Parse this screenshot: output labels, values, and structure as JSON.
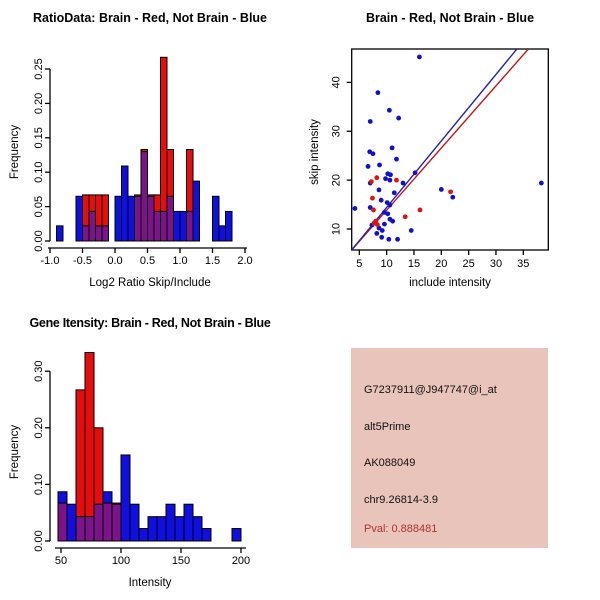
{
  "colors": {
    "hist_blue": "#0f0fe0",
    "hist_red": "#e60d0d",
    "hist_overlap_purple": "#7a1488",
    "bar_border": "#000000",
    "point_blue": "#1111cc",
    "point_red": "#e01111",
    "line_blue": "#2222aa",
    "line_red": "#c41414",
    "axis_black": "#000000",
    "info_panel_bg": "#e9c4bb",
    "pval_red": "#b23030"
  },
  "chart_data": [
    {
      "type": "bar",
      "subtype": "overlaid-histogram",
      "title": "RatioData: Brain - Red, Not Brain - Blue",
      "xlabel": "Log2 Ratio Skip/Include",
      "ylabel": "Frequency",
      "legend_note": "Brain = red, Not Brain = blue, overlap = purple",
      "bin_width": 0.1,
      "xlim": [
        -1.05,
        2.05
      ],
      "ylim": [
        0,
        0.27
      ],
      "x_ticks": [
        "-1.0",
        "-0.5",
        "0.0",
        "0.5",
        "1.0",
        "1.5",
        "2.0"
      ],
      "y_ticks": [
        "0.00",
        "0.05",
        "0.10",
        "0.15",
        "0.20",
        "0.25"
      ],
      "series_names": [
        "Not Brain (blue)",
        "Brain (red)"
      ],
      "bars_key": "[bin_left, blue_freq, red_freq]",
      "bars": [
        [
          -0.9,
          0.022,
          0
        ],
        [
          -0.6,
          0.065,
          0
        ],
        [
          -0.5,
          0.022,
          0.067
        ],
        [
          -0.4,
          0.043,
          0.067
        ],
        [
          -0.3,
          0.022,
          0.067
        ],
        [
          -0.2,
          0.022,
          0.067
        ],
        [
          0.0,
          0.065,
          0
        ],
        [
          0.1,
          0.109,
          0
        ],
        [
          0.2,
          0.065,
          0
        ],
        [
          0.3,
          0.065,
          0.067
        ],
        [
          0.4,
          0.13,
          0.133
        ],
        [
          0.5,
          0.065,
          0.067
        ],
        [
          0.6,
          0.043,
          0.067
        ],
        [
          0.7,
          0.043,
          0.267
        ],
        [
          0.8,
          0.065,
          0.133
        ],
        [
          0.9,
          0.043,
          0
        ],
        [
          1.0,
          0.043,
          0
        ],
        [
          1.1,
          0.043,
          0.133
        ],
        [
          1.2,
          0.087,
          0
        ],
        [
          1.5,
          0.065,
          0
        ],
        [
          1.6,
          0.022,
          0
        ],
        [
          1.7,
          0.043,
          0
        ]
      ]
    },
    {
      "type": "scatter",
      "title": "Brain - Red, Not Brain - Blue",
      "xlabel": "include intensity",
      "ylabel": "skip intensity",
      "xlim": [
        3.5,
        39.5
      ],
      "ylim": [
        5.5,
        47
      ],
      "x_ticks": [
        "5",
        "10",
        "15",
        "20",
        "25",
        "30",
        "35"
      ],
      "y_ticks": [
        "10",
        "20",
        "30",
        "40"
      ],
      "blue_points": [
        [
          16,
          45.2
        ],
        [
          8.4,
          37.9
        ],
        [
          10.5,
          34.3
        ],
        [
          12.2,
          32.7
        ],
        [
          7,
          32
        ],
        [
          11,
          26.6
        ],
        [
          6.9,
          25.8
        ],
        [
          7.5,
          25.4
        ],
        [
          11.8,
          24.3
        ],
        [
          8.7,
          23.1
        ],
        [
          6.6,
          22.8
        ],
        [
          15.2,
          21.5
        ],
        [
          10.2,
          21.3
        ],
        [
          10.7,
          21.1
        ],
        [
          9.8,
          20.3
        ],
        [
          10.6,
          20
        ],
        [
          7,
          19.4
        ],
        [
          13,
          19.4
        ],
        [
          8.6,
          18
        ],
        [
          11.4,
          17.4
        ],
        [
          20,
          18.1
        ],
        [
          22.1,
          16.5
        ],
        [
          9,
          15.9
        ],
        [
          10.1,
          15.4
        ],
        [
          10.6,
          14.9
        ],
        [
          7,
          14.4
        ],
        [
          4.2,
          14.2
        ],
        [
          9.6,
          13.4
        ],
        [
          10.2,
          13.1
        ],
        [
          10.6,
          12
        ],
        [
          11.1,
          11.6
        ],
        [
          9.6,
          11
        ],
        [
          7.3,
          10.8
        ],
        [
          8.6,
          10.2
        ],
        [
          9.2,
          9.7
        ],
        [
          14.5,
          9.7
        ],
        [
          8.2,
          9.1
        ],
        [
          9.1,
          8.3
        ],
        [
          10.4,
          7.9
        ],
        [
          12,
          7.9
        ],
        [
          38.3,
          19.4
        ]
      ],
      "red_points": [
        [
          8.2,
          20.5
        ],
        [
          7.2,
          19.7
        ],
        [
          11.8,
          20
        ],
        [
          7.4,
          16.3
        ],
        [
          7.6,
          13.9
        ],
        [
          8.0,
          11.6
        ],
        [
          7.7,
          11.2
        ],
        [
          8.3,
          10.9
        ],
        [
          13.4,
          12.5
        ],
        [
          16.1,
          13.9
        ],
        [
          21.7,
          17.6
        ]
      ],
      "lines": {
        "blue": [
          [
            3.6,
            5.7
          ],
          [
            33.8,
            46.8
          ]
        ],
        "red": [
          [
            3.6,
            5.7
          ],
          [
            35.9,
            46.8
          ]
        ]
      }
    },
    {
      "type": "bar",
      "subtype": "overlaid-histogram",
      "title": "Gene Itensity: Brain - Red, Not Brain - Blue",
      "xlabel": "Intensity",
      "ylabel": "Frequency",
      "legend_note": "Brain = red, Not Brain = blue, overlap = purple",
      "bin_width": 7.5,
      "xlim": [
        45,
        205
      ],
      "ylim": [
        0,
        0.345
      ],
      "x_ticks": [
        "50",
        "100",
        "150",
        "200"
      ],
      "y_ticks": [
        "0.00",
        "0.10",
        "0.20",
        "0.30"
      ],
      "series_names": [
        "Not Brain (blue)",
        "Brain (red)"
      ],
      "bars_key": "[bin_left, blue_freq, red_freq]",
      "bars": [
        [
          47.5,
          0.087,
          0.067
        ],
        [
          55,
          0.065,
          0
        ],
        [
          62.5,
          0.043,
          0.267
        ],
        [
          70,
          0.043,
          0.333
        ],
        [
          77.5,
          0.065,
          0.2
        ],
        [
          85,
          0.087,
          0.067
        ],
        [
          92.5,
          0.065,
          0.067
        ],
        [
          100,
          0.152,
          0
        ],
        [
          107.5,
          0.065,
          0
        ],
        [
          115,
          0.022,
          0
        ],
        [
          122.5,
          0.043,
          0
        ],
        [
          130,
          0.043,
          0
        ],
        [
          137.5,
          0.065,
          0
        ],
        [
          145,
          0.043,
          0
        ],
        [
          152.5,
          0.065,
          0
        ],
        [
          160,
          0.043,
          0
        ],
        [
          167.5,
          0.022,
          0
        ],
        [
          192.5,
          0.022,
          0
        ]
      ]
    }
  ],
  "info_panel": {
    "lines": [
      {
        "text": "G7237911@J947747@i_at",
        "color": "black"
      },
      {
        "text": "alt5Prime",
        "color": "black"
      },
      {
        "text": "AK088049",
        "color": "black"
      },
      {
        "text": "chr9.26814-3.9",
        "color": "black"
      },
      {
        "text": "Pval: 0.888481",
        "color": "red"
      }
    ]
  }
}
